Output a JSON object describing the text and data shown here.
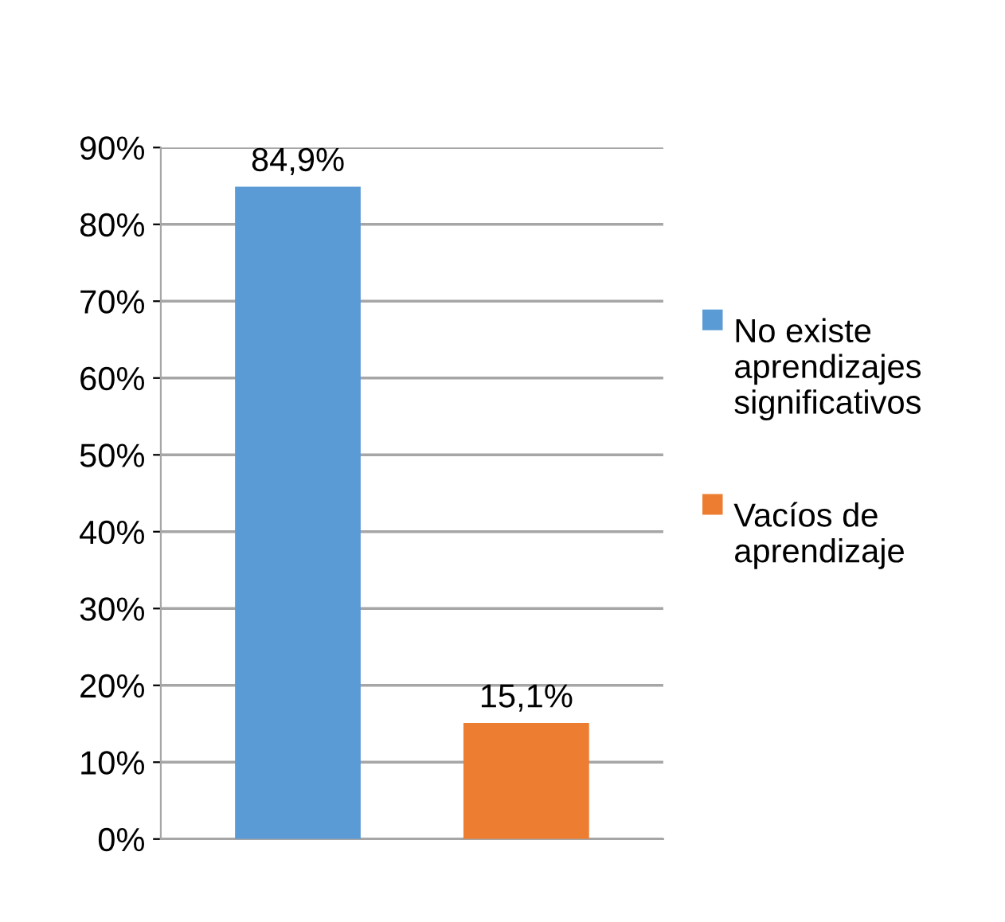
{
  "chart_data": {
    "type": "bar",
    "categories": [
      null,
      null
    ],
    "series": [
      {
        "name": "No existe aprendizajes significativos",
        "color": "#5b9bd5",
        "values": [
          84.9,
          null
        ],
        "value_labels": [
          "84,9%",
          null
        ]
      },
      {
        "name": "Vacíos de aprendizaje",
        "color": "#ed7d31",
        "values": [
          null,
          15.1
        ],
        "value_labels": [
          null,
          "15,1%"
        ]
      }
    ],
    "ylim": [
      0,
      90
    ],
    "yticks": [
      {
        "value": 0,
        "label": "0%"
      },
      {
        "value": 10,
        "label": "10%"
      },
      {
        "value": 20,
        "label": "20%"
      },
      {
        "value": 30,
        "label": "30%"
      },
      {
        "value": 40,
        "label": "40%"
      },
      {
        "value": 50,
        "label": "50%"
      },
      {
        "value": 60,
        "label": "60%"
      },
      {
        "value": 70,
        "label": "70%"
      },
      {
        "value": 80,
        "label": "80%"
      },
      {
        "value": 90,
        "label": "90%"
      }
    ],
    "grid": "y",
    "legend": "right"
  }
}
